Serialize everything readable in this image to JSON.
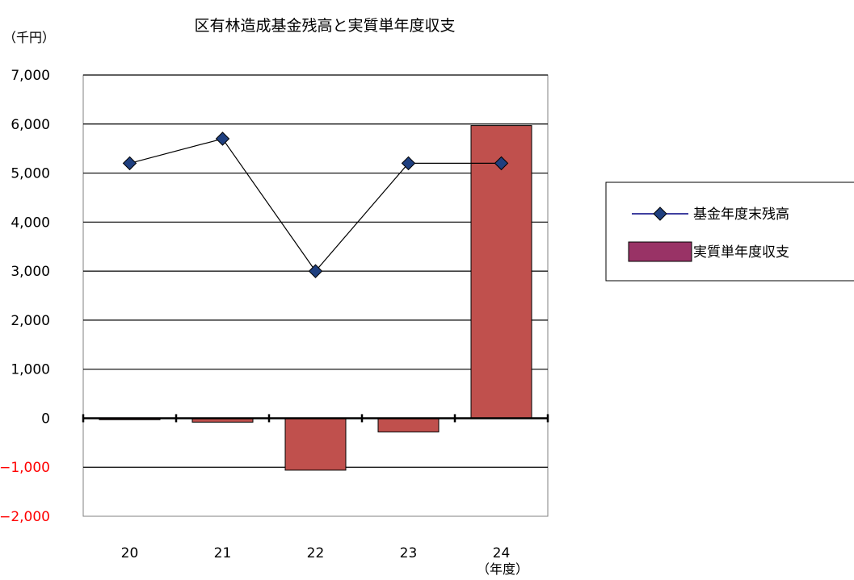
{
  "chart_data": {
    "type": "bar",
    "title": "区有林造成基金残高と実質単年度収支",
    "ylabel": "（千円）",
    "xlabel": "（年度）",
    "categories": [
      "20",
      "21",
      "22",
      "23",
      "24"
    ],
    "ylim": [
      -2000,
      7000
    ],
    "yticks": [
      7000,
      6000,
      5000,
      4000,
      3000,
      2000,
      1000,
      0,
      -1000,
      -2000
    ],
    "ytick_labels": [
      "7,000",
      "6,000",
      "5,000",
      "4,000",
      "3,000",
      "2,000",
      "1,000",
      "0",
      "−1,000",
      "−2,000"
    ],
    "negative_tick_color": "#ff0000",
    "grid": true,
    "legend_position": "right",
    "series": [
      {
        "name": "基金年度末残高",
        "type": "line",
        "marker": "diamond",
        "color": "#000080",
        "values": [
          5200,
          5700,
          3000,
          5200,
          5200
        ]
      },
      {
        "name": "実質単年度収支",
        "type": "bar",
        "color": "#c0504d",
        "legend_color": "#993366",
        "values": [
          -30,
          -80,
          -1060,
          -280,
          5970
        ]
      }
    ]
  }
}
